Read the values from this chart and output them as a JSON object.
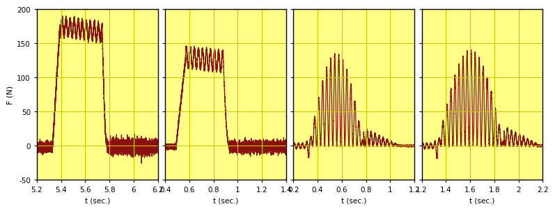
{
  "panels": [
    {
      "xlim": [
        5.2,
        6.2
      ],
      "xticks": [
        5.2,
        5.4,
        5.6,
        5.8,
        6.0,
        6.2
      ],
      "sig_start": 5.33,
      "sig_end": 5.78,
      "peak": 175,
      "plateau_ripple": 12,
      "pre_noise": 7,
      "post_noise": 10,
      "vib_amp": 0,
      "vib_freq": 30,
      "rise_time": 0.06,
      "fall_time": 0.04
    },
    {
      "xlim": [
        0.4,
        1.4
      ],
      "xticks": [
        0.4,
        0.6,
        0.8,
        1.0,
        1.2,
        1.4
      ],
      "sig_start": 0.49,
      "sig_end": 0.93,
      "peak": 130,
      "plateau_ripple": 15,
      "pre_noise": 4,
      "post_noise": 8,
      "vib_amp": 0,
      "vib_freq": 30,
      "rise_time": 0.08,
      "fall_time": 0.05
    },
    {
      "xlim": [
        0.2,
        1.2
      ],
      "xticks": [
        0.2,
        0.4,
        0.6,
        0.8,
        1.0,
        1.2
      ],
      "sig_start": 0.33,
      "sig_end": 0.78,
      "peak": 135,
      "plateau_ripple": 0,
      "pre_noise": 3,
      "post_noise": 3,
      "vib_amp": 65,
      "vib_freq": 30,
      "rise_time": 0.05,
      "fall_time": 0.04
    },
    {
      "xlim": [
        1.2,
        2.2
      ],
      "xticks": [
        1.2,
        1.4,
        1.6,
        1.8,
        2.0,
        2.2
      ],
      "sig_start": 1.33,
      "sig_end": 1.88,
      "peak": 140,
      "plateau_ripple": 0,
      "pre_noise": 3,
      "post_noise": 3,
      "vib_amp": 70,
      "vib_freq": 30,
      "rise_time": 0.05,
      "fall_time": 0.04
    }
  ],
  "ylim": [
    -50,
    200
  ],
  "yticks": [
    -50,
    0,
    50,
    100,
    150,
    200
  ],
  "ylabel": "F (N)",
  "xlabel": "t (sec.)",
  "bg_color": "#FFFF88",
  "line_color": "#8B1010",
  "grid_color": "#C8C800"
}
